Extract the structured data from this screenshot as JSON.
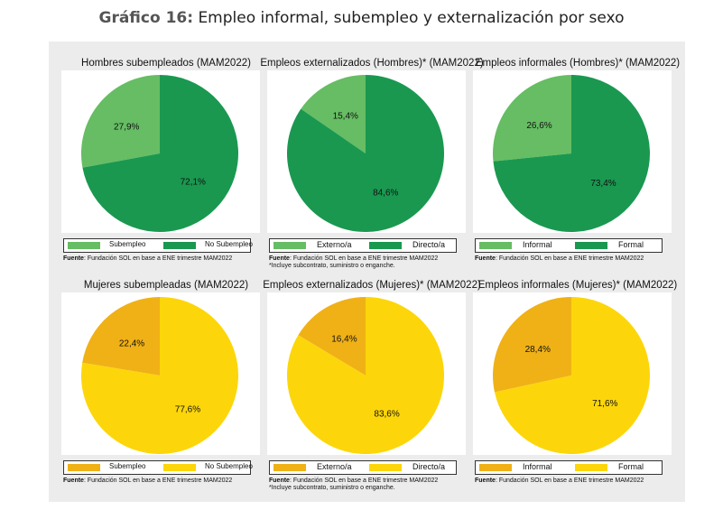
{
  "title": {
    "prefix": "Gráfico 16:",
    "text": "Empleo informal, subempleo y externalización por sexo"
  },
  "colors": {
    "green_light": "#66bd63",
    "green_dark": "#1a9850",
    "yellow_light": "#f0b116",
    "yellow_dark": "#fcd60a"
  },
  "chart_data": [
    {
      "type": "pie",
      "title": "Hombres subempleados (MAM2022)",
      "slices": [
        {
          "label": "Subempleo",
          "value": 27.9,
          "text": "27,9%",
          "color": "#66bd63"
        },
        {
          "label": "No Subempleo",
          "value": 72.1,
          "text": "72,1%",
          "color": "#1a9850"
        }
      ],
      "legend": "bottom",
      "legend_size": "small",
      "source_label": "Fuente",
      "source": ": Fundación SOL en base a ENE trimestre MAM2022",
      "note": ""
    },
    {
      "type": "pie",
      "title": "Empleos externalizados (Hombres)* (MAM2022)",
      "slices": [
        {
          "label": "Externo/a",
          "value": 15.4,
          "text": "15,4%",
          "color": "#66bd63"
        },
        {
          "label": "Directo/a",
          "value": 84.6,
          "text": "84,6%",
          "color": "#1a9850"
        }
      ],
      "legend": "bottom",
      "legend_size": "big",
      "source_label": "Fuente",
      "source": ": Fundación SOL en base a ENE trimestre MAM2022",
      "note": "*Incluye subcontrato, suministro o enganche."
    },
    {
      "type": "pie",
      "title": "Empleos informales (Hombres)* (MAM2022)",
      "slices": [
        {
          "label": "Informal",
          "value": 26.6,
          "text": "26,6%",
          "color": "#66bd63"
        },
        {
          "label": "Formal",
          "value": 73.4,
          "text": "73,4%",
          "color": "#1a9850"
        }
      ],
      "legend": "bottom",
      "legend_size": "big",
      "source_label": "Fuente",
      "source": ": Fundación SOL en base a ENE trimestre MAM2022",
      "note": ""
    },
    {
      "type": "pie",
      "title": "Mujeres subempleadas (MAM2022)",
      "slices": [
        {
          "label": "Subempleo",
          "value": 22.4,
          "text": "22,4%",
          "color": "#f0b116"
        },
        {
          "label": "No Subempleo",
          "value": 77.6,
          "text": "77,6%",
          "color": "#fcd60a"
        }
      ],
      "legend": "bottom",
      "legend_size": "small",
      "source_label": "Fuente",
      "source": ": Fundación SOL en base a ENE trimestre MAM2022",
      "note": ""
    },
    {
      "type": "pie",
      "title": "Empleos externalizados (Mujeres)* (MAM2022)",
      "slices": [
        {
          "label": "Externo/a",
          "value": 16.4,
          "text": "16,4%",
          "color": "#f0b116"
        },
        {
          "label": "Directo/a",
          "value": 83.6,
          "text": "83,6%",
          "color": "#fcd60a"
        }
      ],
      "legend": "bottom",
      "legend_size": "big",
      "source_label": "Fuente",
      "source": ": Fundación SOL en base a ENE trimestre MAM2022",
      "note": "*Incluye subcontrato, suministro o enganche."
    },
    {
      "type": "pie",
      "title": "Empleos informales (Mujeres)* (MAM2022)",
      "slices": [
        {
          "label": "Informal",
          "value": 28.4,
          "text": "28,4%",
          "color": "#f0b116"
        },
        {
          "label": "Formal",
          "value": 71.6,
          "text": "71,6%",
          "color": "#fcd60a"
        }
      ],
      "legend": "bottom",
      "legend_size": "big",
      "source_label": "Fuente",
      "source": ": Fundación SOL en base a ENE trimestre MAM2022",
      "note": ""
    }
  ]
}
